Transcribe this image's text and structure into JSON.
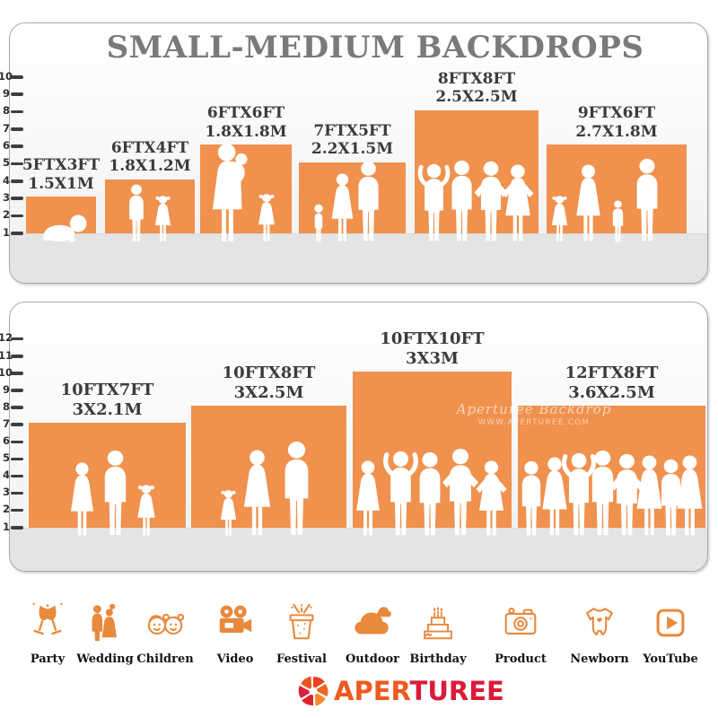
{
  "title": "SMALL-MEDIUM BACKDROPS",
  "watermark": {
    "line1": "Aperturee Backdrop",
    "line2": "WWW.APERTUREE.COM"
  },
  "logo": {
    "part1": "APER",
    "part2": "TUREE"
  },
  "colors": {
    "backdrop_orange": "#F0914E",
    "icon_orange": "#E8893C",
    "title_gray": "#7A7A7A",
    "label_dark": "#3B3B3B",
    "floor_gray": "#E4E4E4",
    "tick_dark": "#3E3E3E",
    "logo_orange": "#EE5A1E",
    "logo_red": "#DC1B38"
  },
  "panels": [
    {
      "name": "small-medium-backdrops",
      "ruler_min": 1,
      "ruler_max": 10,
      "ruler_unit": "FT",
      "backdrops": [
        {
          "size_ft": "5FTX3FT",
          "size_m": "1.5X1M",
          "width_ft": 5,
          "height_ft": 3,
          "people": [
            "baby"
          ]
        },
        {
          "size_ft": "6FTX4FT",
          "size_m": "1.8X1.2M",
          "width_ft": 6,
          "height_ft": 4,
          "people": [
            "boy",
            "girl"
          ]
        },
        {
          "size_ft": "6FTX6FT",
          "size_m": "1.8X1.8M",
          "width_ft": 6,
          "height_ft": 6,
          "people": [
            "mother",
            "girl"
          ]
        },
        {
          "size_ft": "7FTX5FT",
          "size_m": "2.2X1.5M",
          "width_ft": 7,
          "height_ft": 5,
          "people": [
            "toddler",
            "woman",
            "man"
          ]
        },
        {
          "size_ft": "8FTX8FT",
          "size_m": "2.5X2.5M",
          "width_ft": 8,
          "height_ft": 8,
          "people": [
            "man-armsup",
            "man",
            "man-hips",
            "woman-hips"
          ]
        },
        {
          "size_ft": "9FTX6FT",
          "size_m": "2.7X1.8M",
          "width_ft": 9,
          "height_ft": 6,
          "people": [
            "girl",
            "woman",
            "boy",
            "man"
          ]
        }
      ]
    },
    {
      "name": "large-backdrops",
      "ruler_min": 1,
      "ruler_max": 12,
      "ruler_unit": "FT",
      "backdrops": [
        {
          "size_ft": "10FTX7FT",
          "size_m": "3X2.1M",
          "width_ft": 10,
          "height_ft": 7,
          "people": [
            "woman",
            "man",
            "girl"
          ]
        },
        {
          "size_ft": "10FTX8FT",
          "size_m": "3X2.5M",
          "width_ft": 10,
          "height_ft": 8,
          "people": [
            "girl",
            "woman",
            "man"
          ]
        },
        {
          "size_ft": "10FTX10FT",
          "size_m": "3X3M",
          "width_ft": 10,
          "height_ft": 10,
          "people": [
            "woman",
            "man-armsup",
            "man",
            "man-hips",
            "woman-hips"
          ]
        },
        {
          "size_ft": "12FTX8FT",
          "size_m": "3.6X2.5M",
          "width_ft": 12,
          "height_ft": 8,
          "people": [
            "man",
            "woman",
            "man-armsup",
            "man",
            "man-hips",
            "woman",
            "man",
            "woman"
          ]
        }
      ]
    }
  ],
  "categories": [
    {
      "label": "Party",
      "icon": "party-icon"
    },
    {
      "label": "Wedding",
      "icon": "wedding-icon"
    },
    {
      "label": "Children",
      "icon": "children-icon"
    },
    {
      "label": "Video",
      "icon": "video-icon"
    },
    {
      "label": "Festival",
      "icon": "festival-icon"
    },
    {
      "label": "Outdoor",
      "icon": "outdoor-icon"
    },
    {
      "label": "Birthday",
      "icon": "birthday-icon"
    },
    {
      "label": "Product",
      "icon": "product-icon"
    },
    {
      "label": "Newborn",
      "icon": "newborn-icon"
    },
    {
      "label": "YouTube",
      "icon": "youtube-icon"
    }
  ]
}
